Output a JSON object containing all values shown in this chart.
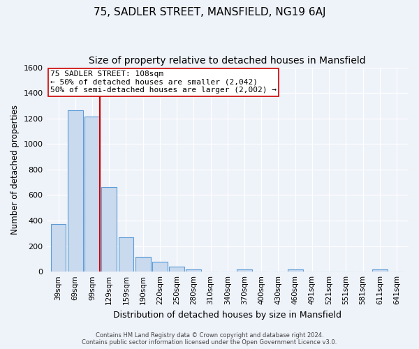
{
  "title": "75, SADLER STREET, MANSFIELD, NG19 6AJ",
  "subtitle": "Size of property relative to detached houses in Mansfield",
  "xlabel": "Distribution of detached houses by size in Mansfield",
  "ylabel": "Number of detached properties",
  "categories": [
    "39sqm",
    "69sqm",
    "99sqm",
    "129sqm",
    "159sqm",
    "190sqm",
    "220sqm",
    "250sqm",
    "280sqm",
    "310sqm",
    "340sqm",
    "370sqm",
    "400sqm",
    "430sqm",
    "460sqm",
    "491sqm",
    "521sqm",
    "551sqm",
    "581sqm",
    "611sqm",
    "641sqm"
  ],
  "values": [
    375,
    1265,
    1215,
    665,
    270,
    115,
    75,
    40,
    20,
    0,
    0,
    18,
    0,
    0,
    18,
    0,
    0,
    0,
    0,
    18,
    0
  ],
  "bar_color": "#c9d9ee",
  "bar_edge_color": "#5b9bd5",
  "vline_color": "#cc0000",
  "annotation_text": "75 SADLER STREET: 108sqm\n← 50% of detached houses are smaller (2,042)\n50% of semi-detached houses are larger (2,002) →",
  "annotation_box_color": "#ffffff",
  "annotation_box_edge_color": "#cc0000",
  "ylim": [
    0,
    1600
  ],
  "yticks": [
    0,
    200,
    400,
    600,
    800,
    1000,
    1200,
    1400,
    1600
  ],
  "footer_line1": "Contains HM Land Registry data © Crown copyright and database right 2024.",
  "footer_line2": "Contains public sector information licensed under the Open Government Licence v3.0.",
  "bg_color": "#eef2f9",
  "plot_bg_color": "#eef2f9",
  "title_fontsize": 11,
  "subtitle_fontsize": 10
}
